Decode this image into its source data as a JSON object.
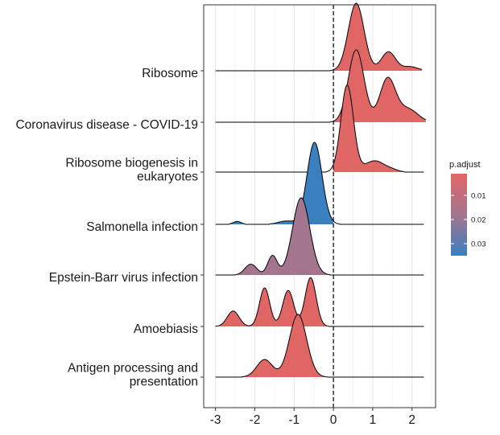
{
  "chart_data": {
    "type": "ridgeline",
    "title": "",
    "xlabel": "",
    "ylabel": "",
    "xlim": [
      -3.3,
      2.6
    ],
    "x_ticks": [
      -3,
      -2,
      -1,
      0,
      1,
      2
    ],
    "x_tick_labels": [
      "-3",
      "-2",
      "-1",
      "0",
      "1",
      "2"
    ],
    "reference_line": {
      "x": 0,
      "style": "dashed"
    },
    "grid": "vertical-minor-and-major",
    "legend": {
      "title": "p.adjust",
      "position": "right",
      "ticks": [
        0.01,
        0.02,
        0.03
      ],
      "tick_labels": [
        "0.01",
        "0.02",
        "0.03"
      ],
      "range": [
        0.001,
        0.035
      ],
      "color_low": "#e06666",
      "color_high": "#3a7fc0"
    },
    "colors": {
      "red": "#e06666",
      "mauve": "#a3758f",
      "blue": "#3a7fc0"
    },
    "series": [
      {
        "label_lines": [
          "Ribosome"
        ],
        "p_adjust": 0.002,
        "fill": "#e06666",
        "x_range": [
          -3.0,
          2.25
        ],
        "fill_from": 0.0,
        "peaks": [
          {
            "mu": 0.58,
            "sigma": 0.2,
            "height": 1.0
          },
          {
            "mu": 1.4,
            "sigma": 0.18,
            "height": 0.28
          },
          {
            "mu": 1.95,
            "sigma": 0.2,
            "height": 0.06
          }
        ]
      },
      {
        "label_lines": [
          "Coronavirus disease - COVID-19"
        ],
        "p_adjust": 0.002,
        "fill": "#e06666",
        "x_range": [
          -3.0,
          2.35
        ],
        "fill_from": 0.0,
        "peaks": [
          {
            "mu": 0.58,
            "sigma": 0.2,
            "height": 1.0
          },
          {
            "mu": 1.38,
            "sigma": 0.2,
            "height": 0.6
          },
          {
            "mu": 1.9,
            "sigma": 0.25,
            "height": 0.18
          }
        ]
      },
      {
        "label_lines": [
          "Ribosome biogenesis in",
          "eukaryotes"
        ],
        "p_adjust": 0.002,
        "fill": "#e06666",
        "x_range": [
          -3.0,
          2.3
        ],
        "fill_from": 0.0,
        "peaks": [
          {
            "mu": 0.35,
            "sigma": 0.16,
            "height": 1.0
          },
          {
            "mu": 1.05,
            "sigma": 0.25,
            "height": 0.13
          },
          {
            "mu": 1.5,
            "sigma": 0.15,
            "height": 0.02
          }
        ]
      },
      {
        "label_lines": [
          "Salmonella infection"
        ],
        "p_adjust": 0.035,
        "fill": "#3a7fc0",
        "x_range": [
          -3.0,
          2.3
        ],
        "fill_from": -3.0,
        "fill_to": 0.0,
        "peaks": [
          {
            "mu": -2.45,
            "sigma": 0.1,
            "height": 0.035
          },
          {
            "mu": -1.2,
            "sigma": 0.2,
            "height": 0.04
          },
          {
            "mu": -0.48,
            "sigma": 0.19,
            "height": 1.0
          }
        ]
      },
      {
        "label_lines": [
          "Epstein-Barr virus infection"
        ],
        "p_adjust": 0.022,
        "fill": "#a3758f",
        "x_range": [
          -3.0,
          2.3
        ],
        "fill_from": -3.0,
        "fill_to": 0.0,
        "peaks": [
          {
            "mu": -2.1,
            "sigma": 0.15,
            "height": 0.14
          },
          {
            "mu": -1.55,
            "sigma": 0.12,
            "height": 0.25
          },
          {
            "mu": -0.82,
            "sigma": 0.22,
            "height": 1.0
          }
        ]
      },
      {
        "label_lines": [
          "Amoebiasis"
        ],
        "p_adjust": 0.002,
        "fill": "#e06666",
        "x_range": [
          -3.0,
          2.3
        ],
        "fill_from": -3.0,
        "fill_to": 0.0,
        "peaks": [
          {
            "mu": -2.55,
            "sigma": 0.15,
            "height": 0.3
          },
          {
            "mu": -1.75,
            "sigma": 0.13,
            "height": 0.75
          },
          {
            "mu": -1.15,
            "sigma": 0.14,
            "height": 0.7
          },
          {
            "mu": -0.58,
            "sigma": 0.14,
            "height": 0.95
          }
        ]
      },
      {
        "label_lines": [
          "Antigen processing and",
          "presentation"
        ],
        "p_adjust": 0.002,
        "fill": "#e06666",
        "x_range": [
          -3.0,
          2.3
        ],
        "fill_from": -3.0,
        "fill_to": 0.0,
        "peaks": [
          {
            "mu": -1.75,
            "sigma": 0.2,
            "height": 0.28
          },
          {
            "mu": -0.9,
            "sigma": 0.22,
            "height": 1.0
          }
        ]
      }
    ]
  }
}
